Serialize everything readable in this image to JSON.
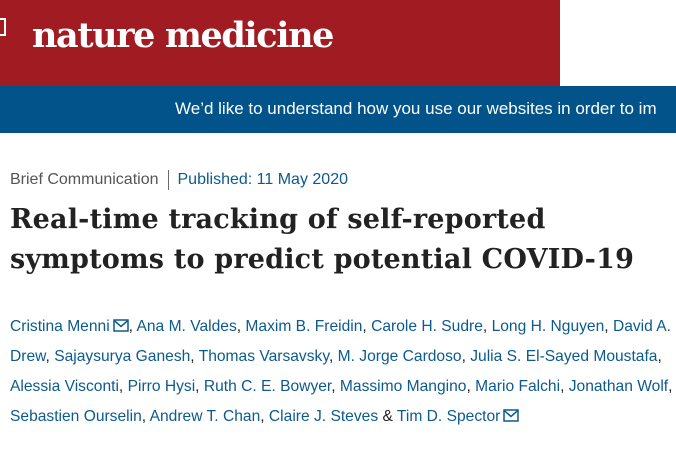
{
  "header": {
    "logo_text": "nature medicine",
    "brand_color": "#a11b22"
  },
  "cookie_banner": {
    "text": "We’d like to understand how you use our websites in order to im",
    "background_color": "#01538a"
  },
  "article": {
    "type": "Brief Communication",
    "published": "Published: 11 May 2020",
    "title": "Real-time tracking of self-reported symptoms to predict potential COVID-19",
    "authors": [
      {
        "name": "Cristina Menni",
        "email_icon": true
      },
      {
        "name": "Ana M. Valdes"
      },
      {
        "name": "Maxim B. Freidin"
      },
      {
        "name": "Carole H. Sudre"
      },
      {
        "name": "Long H. Nguyen"
      },
      {
        "name": "David A. Drew"
      },
      {
        "name": "Sajaysurya Ganesh"
      },
      {
        "name": "Thomas Varsavsky"
      },
      {
        "name": "M. Jorge Cardoso"
      },
      {
        "name": "Julia S. El-Sayed Moustafa"
      },
      {
        "name": "Alessia Visconti"
      },
      {
        "name": "Pirro Hysi"
      },
      {
        "name": "Ruth C. E. Bowyer"
      },
      {
        "name": "Massimo Mangino"
      },
      {
        "name": "Mario Falchi"
      },
      {
        "name": "Jonathan Wolf"
      },
      {
        "name": "Sebastien Ourselin"
      },
      {
        "name": "Andrew T. Chan"
      },
      {
        "name": "Claire J. Steves"
      },
      {
        "name": "Tim D. Spector",
        "email_icon": true
      }
    ],
    "author_separator": ", ",
    "last_author_joiner": " & ",
    "link_color": "#0c5a8e"
  }
}
